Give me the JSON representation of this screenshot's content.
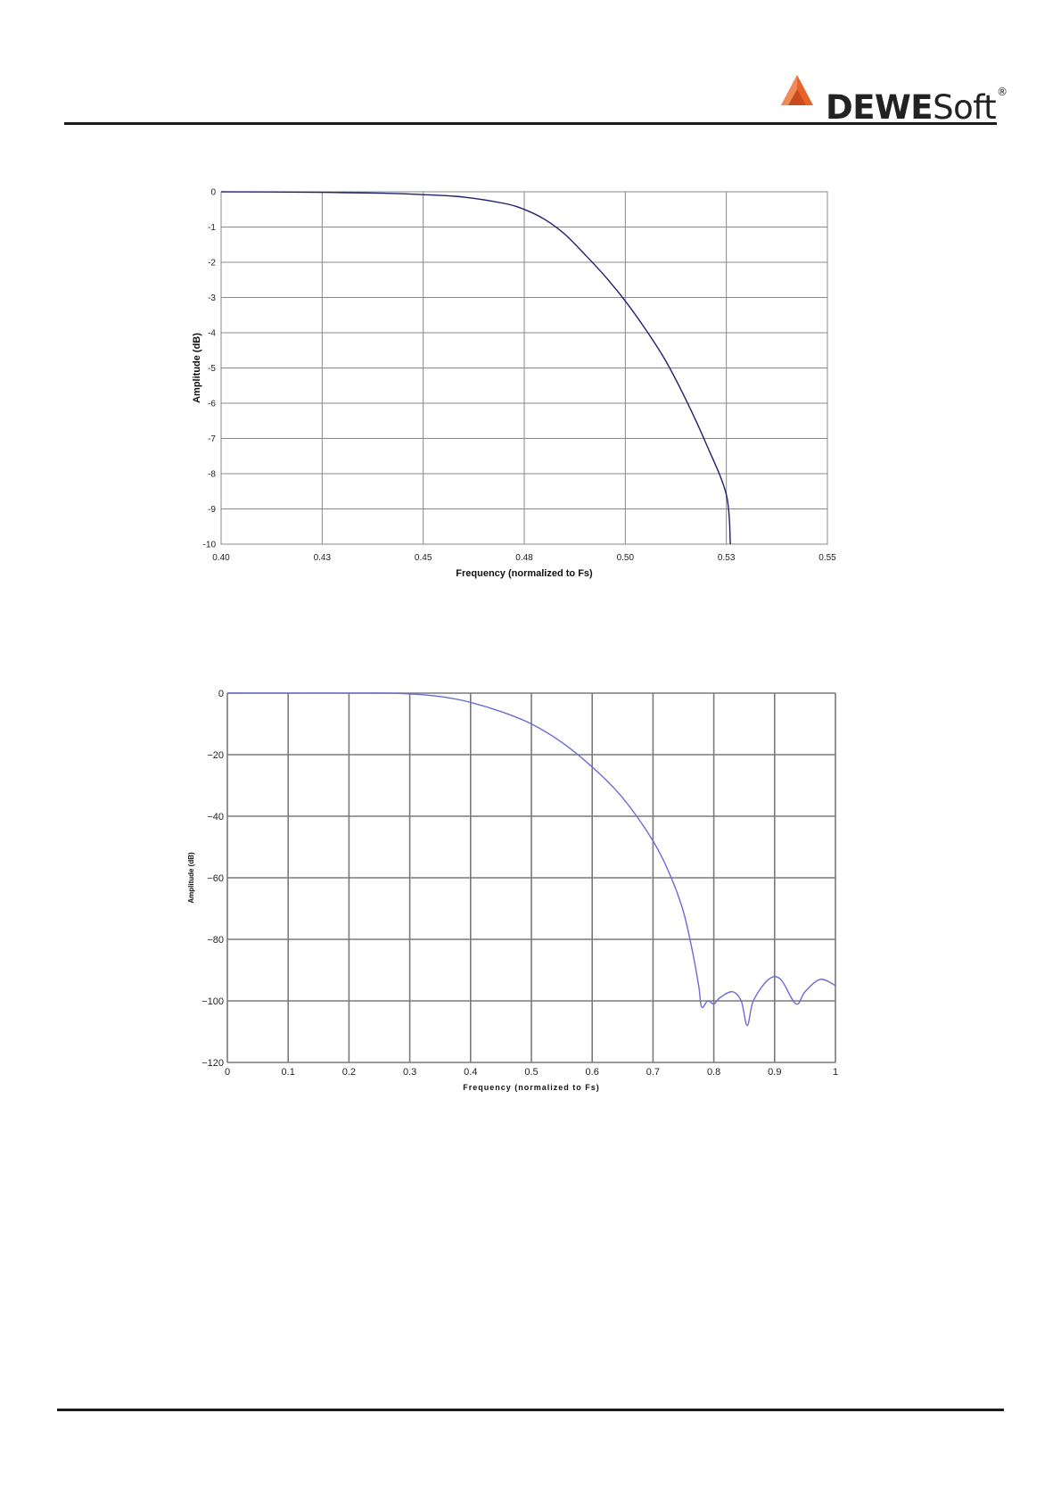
{
  "header": {
    "logo_bold": "DEWE",
    "logo_regular": "Soft",
    "logo_mark": "®",
    "logo_icon": "orange-triangle-logo-icon",
    "colors": {
      "logo_orange": "#e8622c",
      "rule": "#1a1a1a"
    }
  },
  "chart_data": [
    {
      "type": "line",
      "title": "",
      "xlabel": "Frequency (normalized to Fs)",
      "ylabel": "Amplitude (dB)",
      "xlim": [
        0.4,
        0.55
      ],
      "ylim": [
        -10,
        0
      ],
      "x_ticks": [
        0.4,
        0.425,
        0.45,
        0.475,
        0.5,
        0.525,
        0.55
      ],
      "x_tick_labels": [
        "0.40",
        "0.43",
        "0.45",
        "0.48",
        "0.50",
        "0.53",
        "0.55"
      ],
      "y_ticks": [
        0,
        -1,
        -2,
        -3,
        -4,
        -5,
        -6,
        -7,
        -8,
        -9,
        -10
      ],
      "y_tick_labels": [
        "0",
        "-1",
        "-2",
        "-3",
        "-4",
        "-5",
        "-6",
        "-7",
        "-8",
        "-9",
        "-10"
      ],
      "grid": true,
      "line_color": "#1f1f6e",
      "series": [
        {
          "x": [
            0.4,
            0.42,
            0.44,
            0.45,
            0.46,
            0.47,
            0.475,
            0.48,
            0.485,
            0.49,
            0.495,
            0.5,
            0.505,
            0.51,
            0.515,
            0.52,
            0.525,
            0.526
          ],
          "values": [
            0,
            -0.01,
            -0.04,
            -0.08,
            -0.15,
            -0.33,
            -0.5,
            -0.78,
            -1.2,
            -1.78,
            -2.4,
            -3.1,
            -3.9,
            -4.8,
            -5.9,
            -7.15,
            -8.6,
            -10.0
          ]
        }
      ]
    },
    {
      "type": "line",
      "title": "",
      "xlabel": "Frequency (normalized to Fs)",
      "ylabel": "Amplitude (dB)",
      "xlim": [
        0,
        1
      ],
      "ylim": [
        -120,
        0
      ],
      "x_ticks": [
        0,
        0.1,
        0.2,
        0.3,
        0.4,
        0.5,
        0.6,
        0.7,
        0.8,
        0.9,
        1
      ],
      "x_tick_labels": [
        "0",
        "0.1",
        "0.2",
        "0.3",
        "0.4",
        "0.5",
        "0.6",
        "0.7",
        "0.8",
        "0.9",
        "1"
      ],
      "y_ticks": [
        0,
        -20,
        -40,
        -60,
        -80,
        -100,
        -120
      ],
      "y_tick_labels": [
        "0",
        "−20",
        "−40",
        "−60",
        "−80",
        "−100",
        "−120"
      ],
      "grid": true,
      "line_color": "#6b6bd6",
      "series": [
        {
          "x": [
            0,
            0.25,
            0.28,
            0.32,
            0.36,
            0.4,
            0.45,
            0.5,
            0.55,
            0.6,
            0.65,
            0.7,
            0.73,
            0.75,
            0.765,
            0.775,
            0.78,
            0.79,
            0.8,
            0.81,
            0.83,
            0.845,
            0.855,
            0.865,
            0.89,
            0.91,
            0.935,
            0.95,
            0.975,
            1.0
          ],
          "values": [
            0,
            0,
            -0.1,
            -0.5,
            -1.4,
            -3,
            -6,
            -10,
            -16,
            -24,
            -34,
            -48,
            -60,
            -71,
            -84,
            -95,
            -102,
            -100,
            -101,
            -99,
            -97,
            -100,
            -108,
            -100,
            -93,
            -93,
            -101,
            -97,
            -93,
            -95
          ]
        }
      ]
    }
  ]
}
